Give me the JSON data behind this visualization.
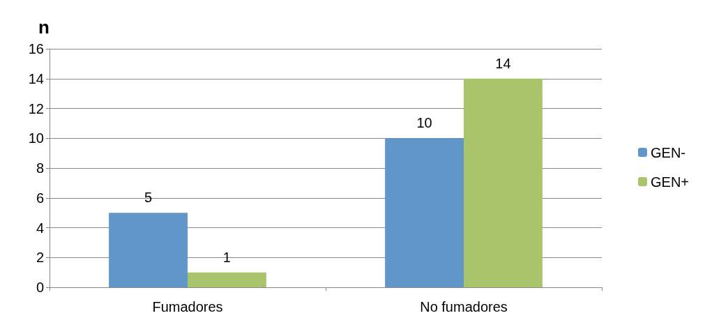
{
  "chart_data": {
    "type": "bar",
    "ylabel": "n",
    "categories": [
      "Fumadores",
      "No fumadores"
    ],
    "series": [
      {
        "name": "GEN-",
        "color": "#6096c9",
        "values": [
          5,
          10
        ]
      },
      {
        "name": "GEN+",
        "color": "#a9c46a",
        "values": [
          1,
          14
        ]
      }
    ],
    "ylim": [
      0,
      16
    ],
    "yticks": [
      0,
      2,
      4,
      6,
      8,
      10,
      12,
      14,
      16
    ],
    "grid": "y",
    "legend": "right",
    "data_labels": true
  }
}
